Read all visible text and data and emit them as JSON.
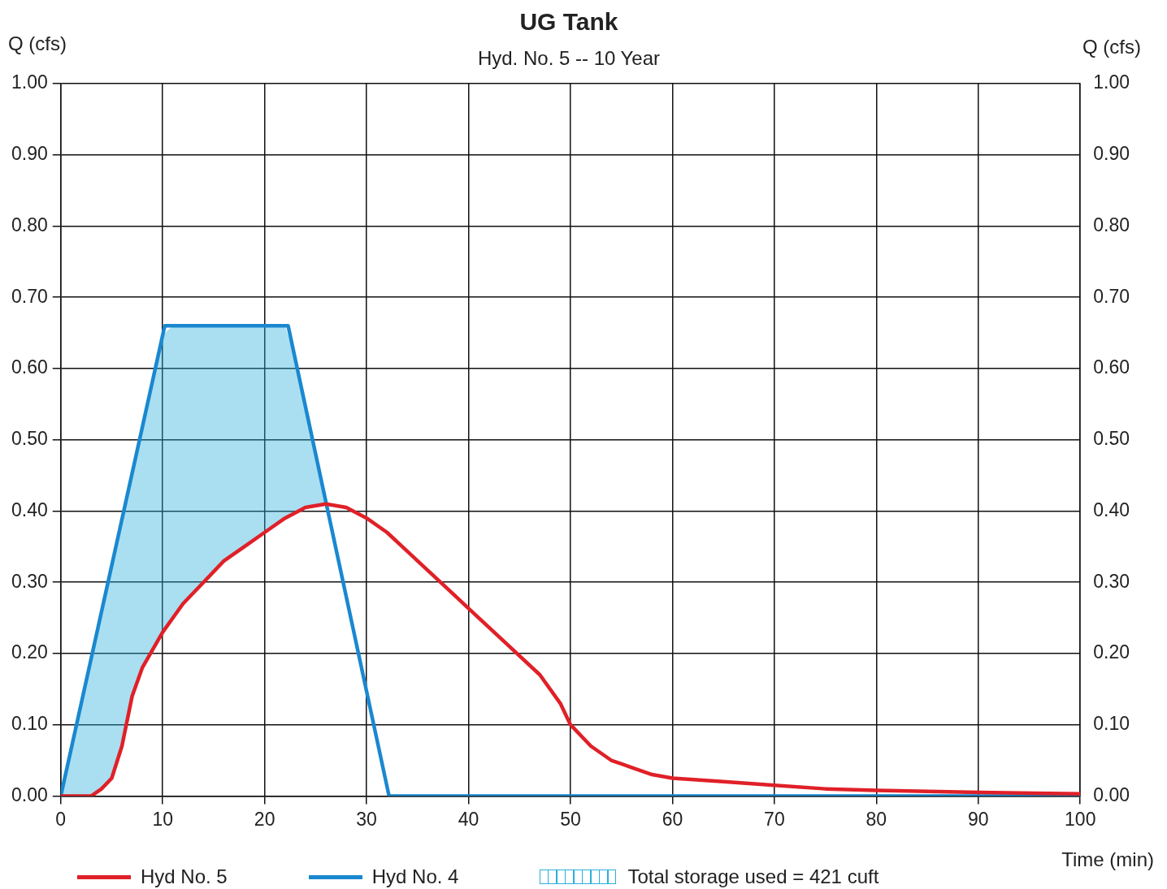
{
  "chart_data": {
    "type": "line",
    "title": "UG Tank",
    "subtitle": "Hyd. No. 5 -- 10 Year",
    "xlabel": "Time (min)",
    "ylabel": "Q (cfs)",
    "y2label": "Q (cfs)",
    "xlim": [
      0,
      100
    ],
    "xticks": [
      0,
      10,
      20,
      30,
      40,
      50,
      60,
      70,
      80,
      90,
      100
    ],
    "ylim": [
      0,
      1
    ],
    "yticks": [
      {
        "value": 0,
        "label": "0.00"
      },
      {
        "value": 0.1,
        "label": "0.10"
      },
      {
        "value": 0.2,
        "label": "0.20"
      },
      {
        "value": 0.3,
        "label": "0.30"
      },
      {
        "value": 0.4,
        "label": "0.40"
      },
      {
        "value": 0.5,
        "label": "0.50"
      },
      {
        "value": 0.6,
        "label": "0.60"
      },
      {
        "value": 0.7,
        "label": "0.70"
      },
      {
        "value": 0.8,
        "label": "0.80"
      },
      {
        "value": 0.9,
        "label": "0.90"
      },
      {
        "value": 1,
        "label": "1.00"
      }
    ],
    "y2lim": [
      0,
      1
    ],
    "y2ticks": [
      {
        "value": 0,
        "label": "0.00"
      },
      {
        "value": 0.1,
        "label": "0.10"
      },
      {
        "value": 0.2,
        "label": "0.20"
      },
      {
        "value": 0.3,
        "label": "0.30"
      },
      {
        "value": 0.4,
        "label": "0.40"
      },
      {
        "value": 0.5,
        "label": "0.50"
      },
      {
        "value": 0.6,
        "label": "0.60"
      },
      {
        "value": 0.7,
        "label": "0.70"
      },
      {
        "value": 0.8,
        "label": "0.80"
      },
      {
        "value": 0.9,
        "label": "0.90"
      },
      {
        "value": 1,
        "label": "1.00"
      }
    ],
    "grid": true,
    "legend": "bottom",
    "marker": "none",
    "series": [
      {
        "name": "Hyd No. 5",
        "color": "#e02028",
        "x": [
          0,
          3,
          4,
          5,
          6,
          7,
          8,
          10,
          12,
          14,
          16,
          18,
          20,
          22,
          24,
          26,
          28,
          30,
          32,
          35,
          38,
          41,
          44,
          47,
          49,
          50,
          52,
          54,
          56,
          58,
          60,
          65,
          70,
          75,
          80,
          90,
          100
        ],
        "values": [
          0,
          0,
          0.01,
          0.025,
          0.07,
          0.14,
          0.18,
          0.23,
          0.27,
          0.3,
          0.33,
          0.35,
          0.37,
          0.39,
          0.405,
          0.41,
          0.405,
          0.39,
          0.37,
          0.33,
          0.29,
          0.25,
          0.21,
          0.17,
          0.13,
          0.1,
          0.07,
          0.05,
          0.04,
          0.03,
          0.025,
          0.02,
          0.015,
          0.01,
          0.008,
          0.005,
          0.003
        ]
      },
      {
        "name": "Hyd No. 4",
        "color": "#1a88d0",
        "x": [
          0,
          10.2,
          22.3,
          32.2,
          100
        ],
        "values": [
          0,
          0.66,
          0.66,
          0,
          0
        ]
      },
      {
        "name": "Total storage used = 421 cuft",
        "type": "area",
        "color": "#29b0dc",
        "x": [
          0,
          1,
          2,
          3,
          4,
          5,
          6,
          7,
          8,
          9,
          10,
          11,
          12,
          13,
          14,
          15,
          16,
          17,
          18,
          19,
          20,
          21,
          22,
          23,
          24,
          25,
          26
        ],
        "values": [
          0,
          0.065,
          0.129,
          0.194,
          0.259,
          0.324,
          0.388,
          0.453,
          0.518,
          0.582,
          0.647,
          0.66,
          0.66,
          0.66,
          0.66,
          0.66,
          0.66,
          0.66,
          0.66,
          0.66,
          0.66,
          0.66,
          0.66,
          0.613,
          0.547,
          0.48,
          0.413
        ]
      }
    ]
  }
}
